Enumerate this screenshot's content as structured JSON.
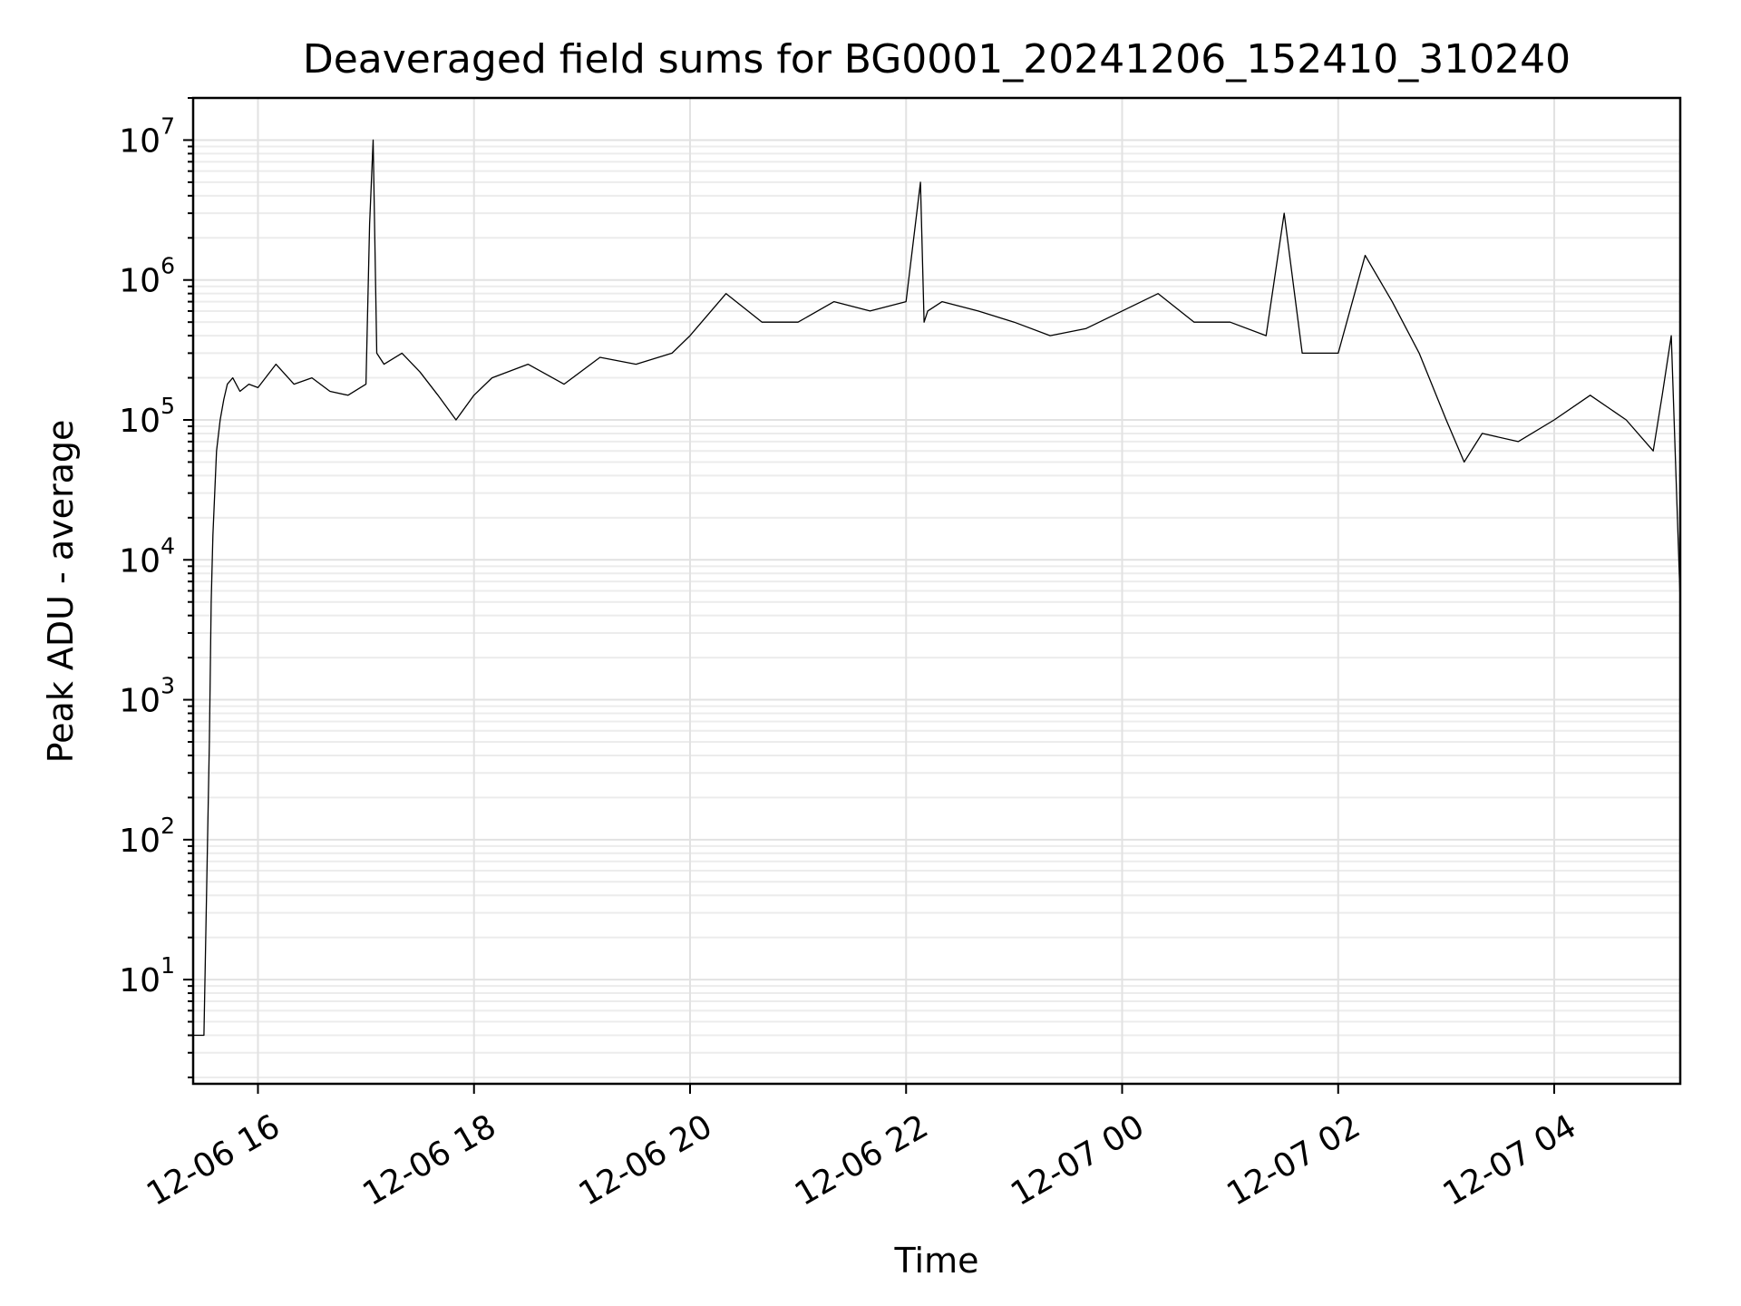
{
  "chart_data": {
    "type": "line",
    "title": "Deaveraged field sums for BG0001_20241206_152410_310240",
    "xlabel": "Time",
    "ylabel": "Peak ADU - average",
    "yscale": "log",
    "xlim": [
      "2024-12-06 15:24",
      "2024-12-07 05:10"
    ],
    "ylim": [
      1.8,
      20000000
    ],
    "grid": true,
    "x_ticks": [
      {
        "value": "2024-12-06 16:00",
        "label": "12-06 16"
      },
      {
        "value": "2024-12-06 18:00",
        "label": "12-06 18"
      },
      {
        "value": "2024-12-06 20:00",
        "label": "12-06 20"
      },
      {
        "value": "2024-12-06 22:00",
        "label": "12-06 22"
      },
      {
        "value": "2024-12-07 00:00",
        "label": "12-07 00"
      },
      {
        "value": "2024-12-07 02:00",
        "label": "12-07 02"
      },
      {
        "value": "2024-12-07 04:00",
        "label": "12-07 04"
      }
    ],
    "y_ticks": [
      {
        "value": 10,
        "base": "10",
        "exp": "1"
      },
      {
        "value": 100,
        "base": "10",
        "exp": "2"
      },
      {
        "value": 1000,
        "base": "10",
        "exp": "3"
      },
      {
        "value": 10000,
        "base": "10",
        "exp": "4"
      },
      {
        "value": 100000,
        "base": "10",
        "exp": "5"
      },
      {
        "value": 1000000,
        "base": "10",
        "exp": "6"
      },
      {
        "value": 10000000,
        "base": "10",
        "exp": "7"
      }
    ],
    "series": [
      {
        "color": "#000000",
        "x": [
          "2024-12-06 15:24",
          "2024-12-06 15:27",
          "2024-12-06 15:30",
          "2024-12-06 15:33",
          "2024-12-06 15:34",
          "2024-12-06 15:35",
          "2024-12-06 15:36",
          "2024-12-06 15:37",
          "2024-12-06 15:39",
          "2024-12-06 15:41",
          "2024-12-06 15:43",
          "2024-12-06 15:46",
          "2024-12-06 15:50",
          "2024-12-06 15:55",
          "2024-12-06 16:00",
          "2024-12-06 16:10",
          "2024-12-06 16:20",
          "2024-12-06 16:30",
          "2024-12-06 16:40",
          "2024-12-06 16:50",
          "2024-12-06 17:00",
          "2024-12-06 17:02",
          "2024-12-06 17:04",
          "2024-12-06 17:06",
          "2024-12-06 17:10",
          "2024-12-06 17:20",
          "2024-12-06 17:30",
          "2024-12-06 17:40",
          "2024-12-06 17:50",
          "2024-12-06 18:00",
          "2024-12-06 18:10",
          "2024-12-06 18:30",
          "2024-12-06 18:50",
          "2024-12-06 19:10",
          "2024-12-06 19:30",
          "2024-12-06 19:50",
          "2024-12-06 20:00",
          "2024-12-06 20:20",
          "2024-12-06 20:40",
          "2024-12-06 21:00",
          "2024-12-06 21:20",
          "2024-12-06 21:40",
          "2024-12-06 22:00",
          "2024-12-06 22:08",
          "2024-12-06 22:10",
          "2024-12-06 22:12",
          "2024-12-06 22:20",
          "2024-12-06 22:40",
          "2024-12-06 23:00",
          "2024-12-06 23:20",
          "2024-12-06 23:40",
          "2024-12-07 00:00",
          "2024-12-07 00:20",
          "2024-12-07 00:40",
          "2024-12-07 01:00",
          "2024-12-07 01:20",
          "2024-12-07 01:30",
          "2024-12-07 01:40",
          "2024-12-07 02:00",
          "2024-12-07 02:15",
          "2024-12-07 02:30",
          "2024-12-07 02:45",
          "2024-12-07 03:00",
          "2024-12-07 03:10",
          "2024-12-07 03:20",
          "2024-12-07 03:40",
          "2024-12-07 04:00",
          "2024-12-07 04:20",
          "2024-12-07 04:40",
          "2024-12-07 04:55",
          "2024-12-07 05:00",
          "2024-12-07 05:05",
          "2024-12-07 05:10"
        ],
        "y": [
          4,
          4,
          4,
          500,
          5000,
          15000,
          30000,
          60000,
          100000,
          140000,
          180000,
          200000,
          160000,
          180000,
          170000,
          250000,
          180000,
          200000,
          160000,
          150000,
          180000,
          2500000,
          10000000,
          300000,
          250000,
          300000,
          220000,
          150000,
          100000,
          150000,
          200000,
          250000,
          180000,
          280000,
          250000,
          300000,
          400000,
          800000,
          500000,
          500000,
          700000,
          600000,
          700000,
          5000000,
          500000,
          600000,
          700000,
          600000,
          500000,
          400000,
          450000,
          600000,
          800000,
          500000,
          500000,
          400000,
          3000000,
          300000,
          300000,
          1500000,
          700000,
          300000,
          100000,
          50000,
          80000,
          70000,
          100000,
          150000,
          100000,
          60000,
          150000,
          400000,
          5000
        ]
      }
    ]
  }
}
